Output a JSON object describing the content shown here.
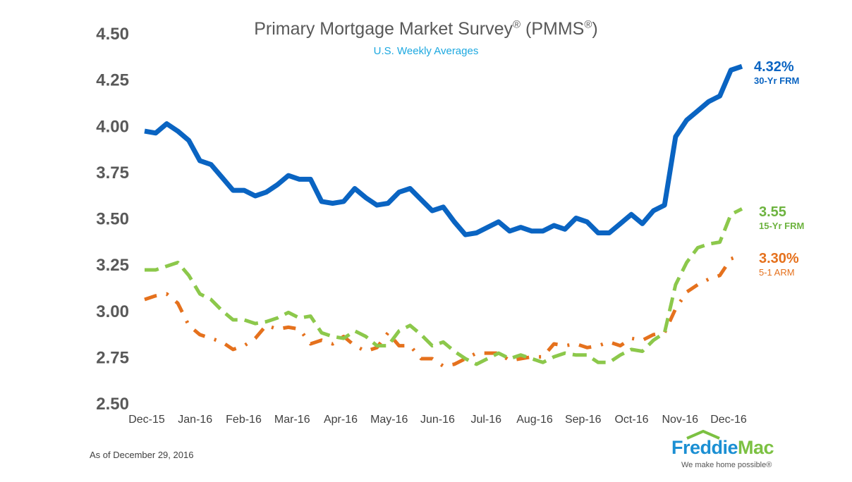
{
  "chart_data": {
    "type": "line",
    "title": "Primary Mortgage Market Survey",
    "title_mark": "®",
    "title_suffix": " (PMMS",
    "title_suffix_end": ")",
    "subtitle": "U.S. Weekly Averages",
    "ylim": [
      2.5,
      4.5
    ],
    "yticks": [
      "2.50",
      "2.75",
      "3.00",
      "3.25",
      "3.50",
      "3.75",
      "4.00",
      "4.25",
      "4.50"
    ],
    "xticks": [
      "Dec-15",
      "Jan-16",
      "Feb-16",
      "Mar-16",
      "Apr-16",
      "May-16",
      "Jun-16",
      "Jul-16",
      "Aug-16",
      "Sep-16",
      "Oct-16",
      "Nov-16",
      "Dec-16"
    ],
    "grid": false,
    "series": [
      {
        "name": "30-Yr FRM",
        "end_label": "4.32%",
        "color": "#0a64c2",
        "style": "solid",
        "values": [
          3.97,
          3.96,
          4.01,
          3.97,
          3.92,
          3.81,
          3.79,
          3.72,
          3.65,
          3.65,
          3.62,
          3.64,
          3.68,
          3.73,
          3.71,
          3.71,
          3.59,
          3.58,
          3.59,
          3.66,
          3.61,
          3.57,
          3.58,
          3.64,
          3.66,
          3.6,
          3.54,
          3.56,
          3.48,
          3.41,
          3.42,
          3.45,
          3.48,
          3.43,
          3.45,
          3.43,
          3.43,
          3.46,
          3.44,
          3.5,
          3.48,
          3.42,
          3.42,
          3.47,
          3.52,
          3.47,
          3.54,
          3.57,
          3.94,
          4.03,
          4.08,
          4.13,
          4.16,
          4.3,
          4.32
        ]
      },
      {
        "name": "15-Yr FRM",
        "end_label": "3.55",
        "color": "#8cc84b",
        "style": "dashed",
        "values": [
          3.22,
          3.22,
          3.24,
          3.26,
          3.19,
          3.09,
          3.06,
          3.0,
          2.95,
          2.95,
          2.93,
          2.94,
          2.96,
          2.99,
          2.96,
          2.97,
          2.88,
          2.86,
          2.85,
          2.89,
          2.86,
          2.81,
          2.81,
          2.89,
          2.92,
          2.87,
          2.81,
          2.83,
          2.78,
          2.74,
          2.71,
          2.74,
          2.77,
          2.74,
          2.76,
          2.74,
          2.72,
          2.75,
          2.77,
          2.76,
          2.76,
          2.72,
          2.72,
          2.76,
          2.79,
          2.78,
          2.84,
          2.88,
          3.14,
          3.26,
          3.34,
          3.36,
          3.37,
          3.52,
          3.55
        ]
      },
      {
        "name": "5-1 ARM",
        "end_label": "3.30%",
        "color": "#e5711d",
        "style": "dash-dot",
        "values": [
          3.06,
          3.08,
          3.09,
          3.04,
          2.92,
          2.87,
          2.85,
          2.83,
          2.79,
          2.81,
          2.85,
          2.92,
          2.9,
          2.91,
          2.9,
          2.82,
          2.84,
          2.82,
          2.86,
          2.81,
          2.78,
          2.8,
          2.88,
          2.81,
          2.81,
          2.74,
          2.74,
          2.7,
          2.71,
          2.74,
          2.77,
          2.77,
          2.77,
          2.73,
          2.74,
          2.75,
          2.75,
          2.82,
          2.81,
          2.82,
          2.8,
          2.81,
          2.83,
          2.81,
          2.85,
          2.84,
          2.87,
          2.88,
          3.01,
          3.1,
          3.14,
          3.17,
          3.19,
          3.28,
          3.3
        ]
      }
    ]
  },
  "footer": {
    "as_of": "As of December 29, 2016",
    "logo_freddie": "Freddie",
    "logo_mac": "Mac",
    "tagline": "We make home possible®"
  }
}
